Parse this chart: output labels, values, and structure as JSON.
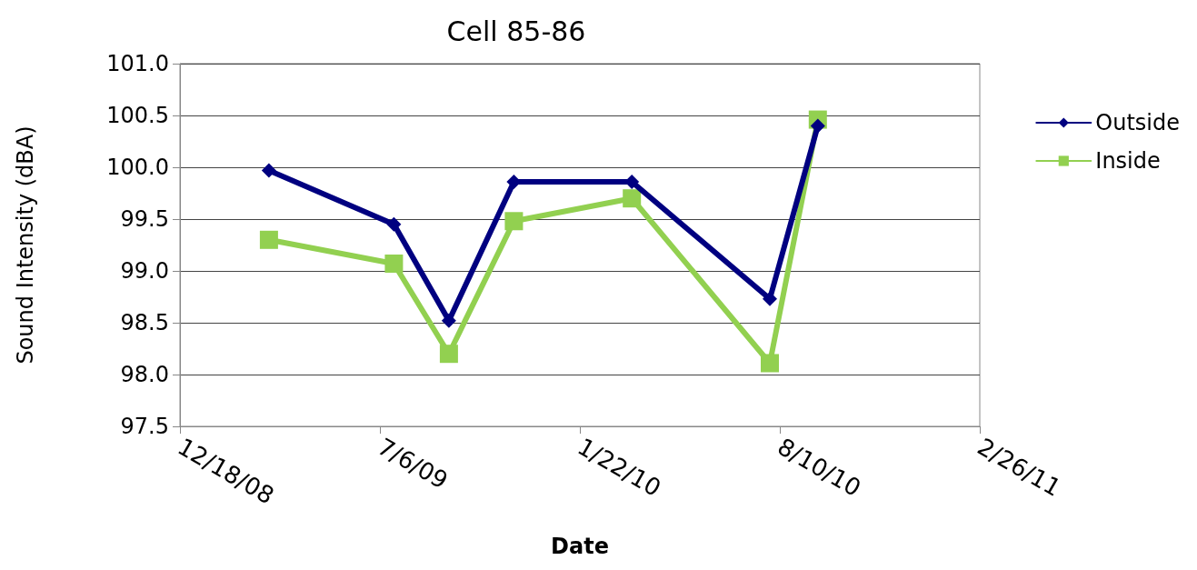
{
  "chart_data": {
    "type": "line",
    "title": "Cell 85-86",
    "xlabel": "Date",
    "ylabel": "Sound Intensity (dBA)",
    "xlim": [
      "2008-12-18",
      "2011-02-26"
    ],
    "xticks": [
      {
        "value": "2008-12-18",
        "label": "12/18/08"
      },
      {
        "value": "2009-07-06",
        "label": "7/6/09"
      },
      {
        "value": "2010-01-22",
        "label": "1/22/10"
      },
      {
        "value": "2010-08-10",
        "label": "8/10/10"
      },
      {
        "value": "2011-02-26",
        "label": "2/26/11"
      }
    ],
    "ylim": [
      97.5,
      101.0
    ],
    "yticks": [
      {
        "value": 97.5,
        "label": "97.5"
      },
      {
        "value": 98.0,
        "label": "98.0"
      },
      {
        "value": 98.5,
        "label": "98.5"
      },
      {
        "value": 99.0,
        "label": "99.0"
      },
      {
        "value": 99.5,
        "label": "99.5"
      },
      {
        "value": 100.0,
        "label": "100.0"
      },
      {
        "value": 100.5,
        "label": "100.5"
      },
      {
        "value": 101.0,
        "label": "101.0"
      }
    ],
    "x": [
      "2009-03-17",
      "2009-07-20",
      "2009-09-13",
      "2009-11-17",
      "2010-03-15",
      "2010-07-31",
      "2010-09-17"
    ],
    "series": [
      {
        "name": "Outside",
        "color": "#000080",
        "marker": "diamond",
        "values": [
          99.97,
          99.45,
          98.52,
          99.86,
          99.86,
          98.73,
          100.4
        ]
      },
      {
        "name": "Inside",
        "color": "#92d050",
        "marker": "square",
        "values": [
          99.3,
          99.07,
          98.2,
          99.48,
          99.7,
          98.11,
          100.46
        ]
      }
    ],
    "grid": "y",
    "legend": "right",
    "line_style": "solid"
  }
}
